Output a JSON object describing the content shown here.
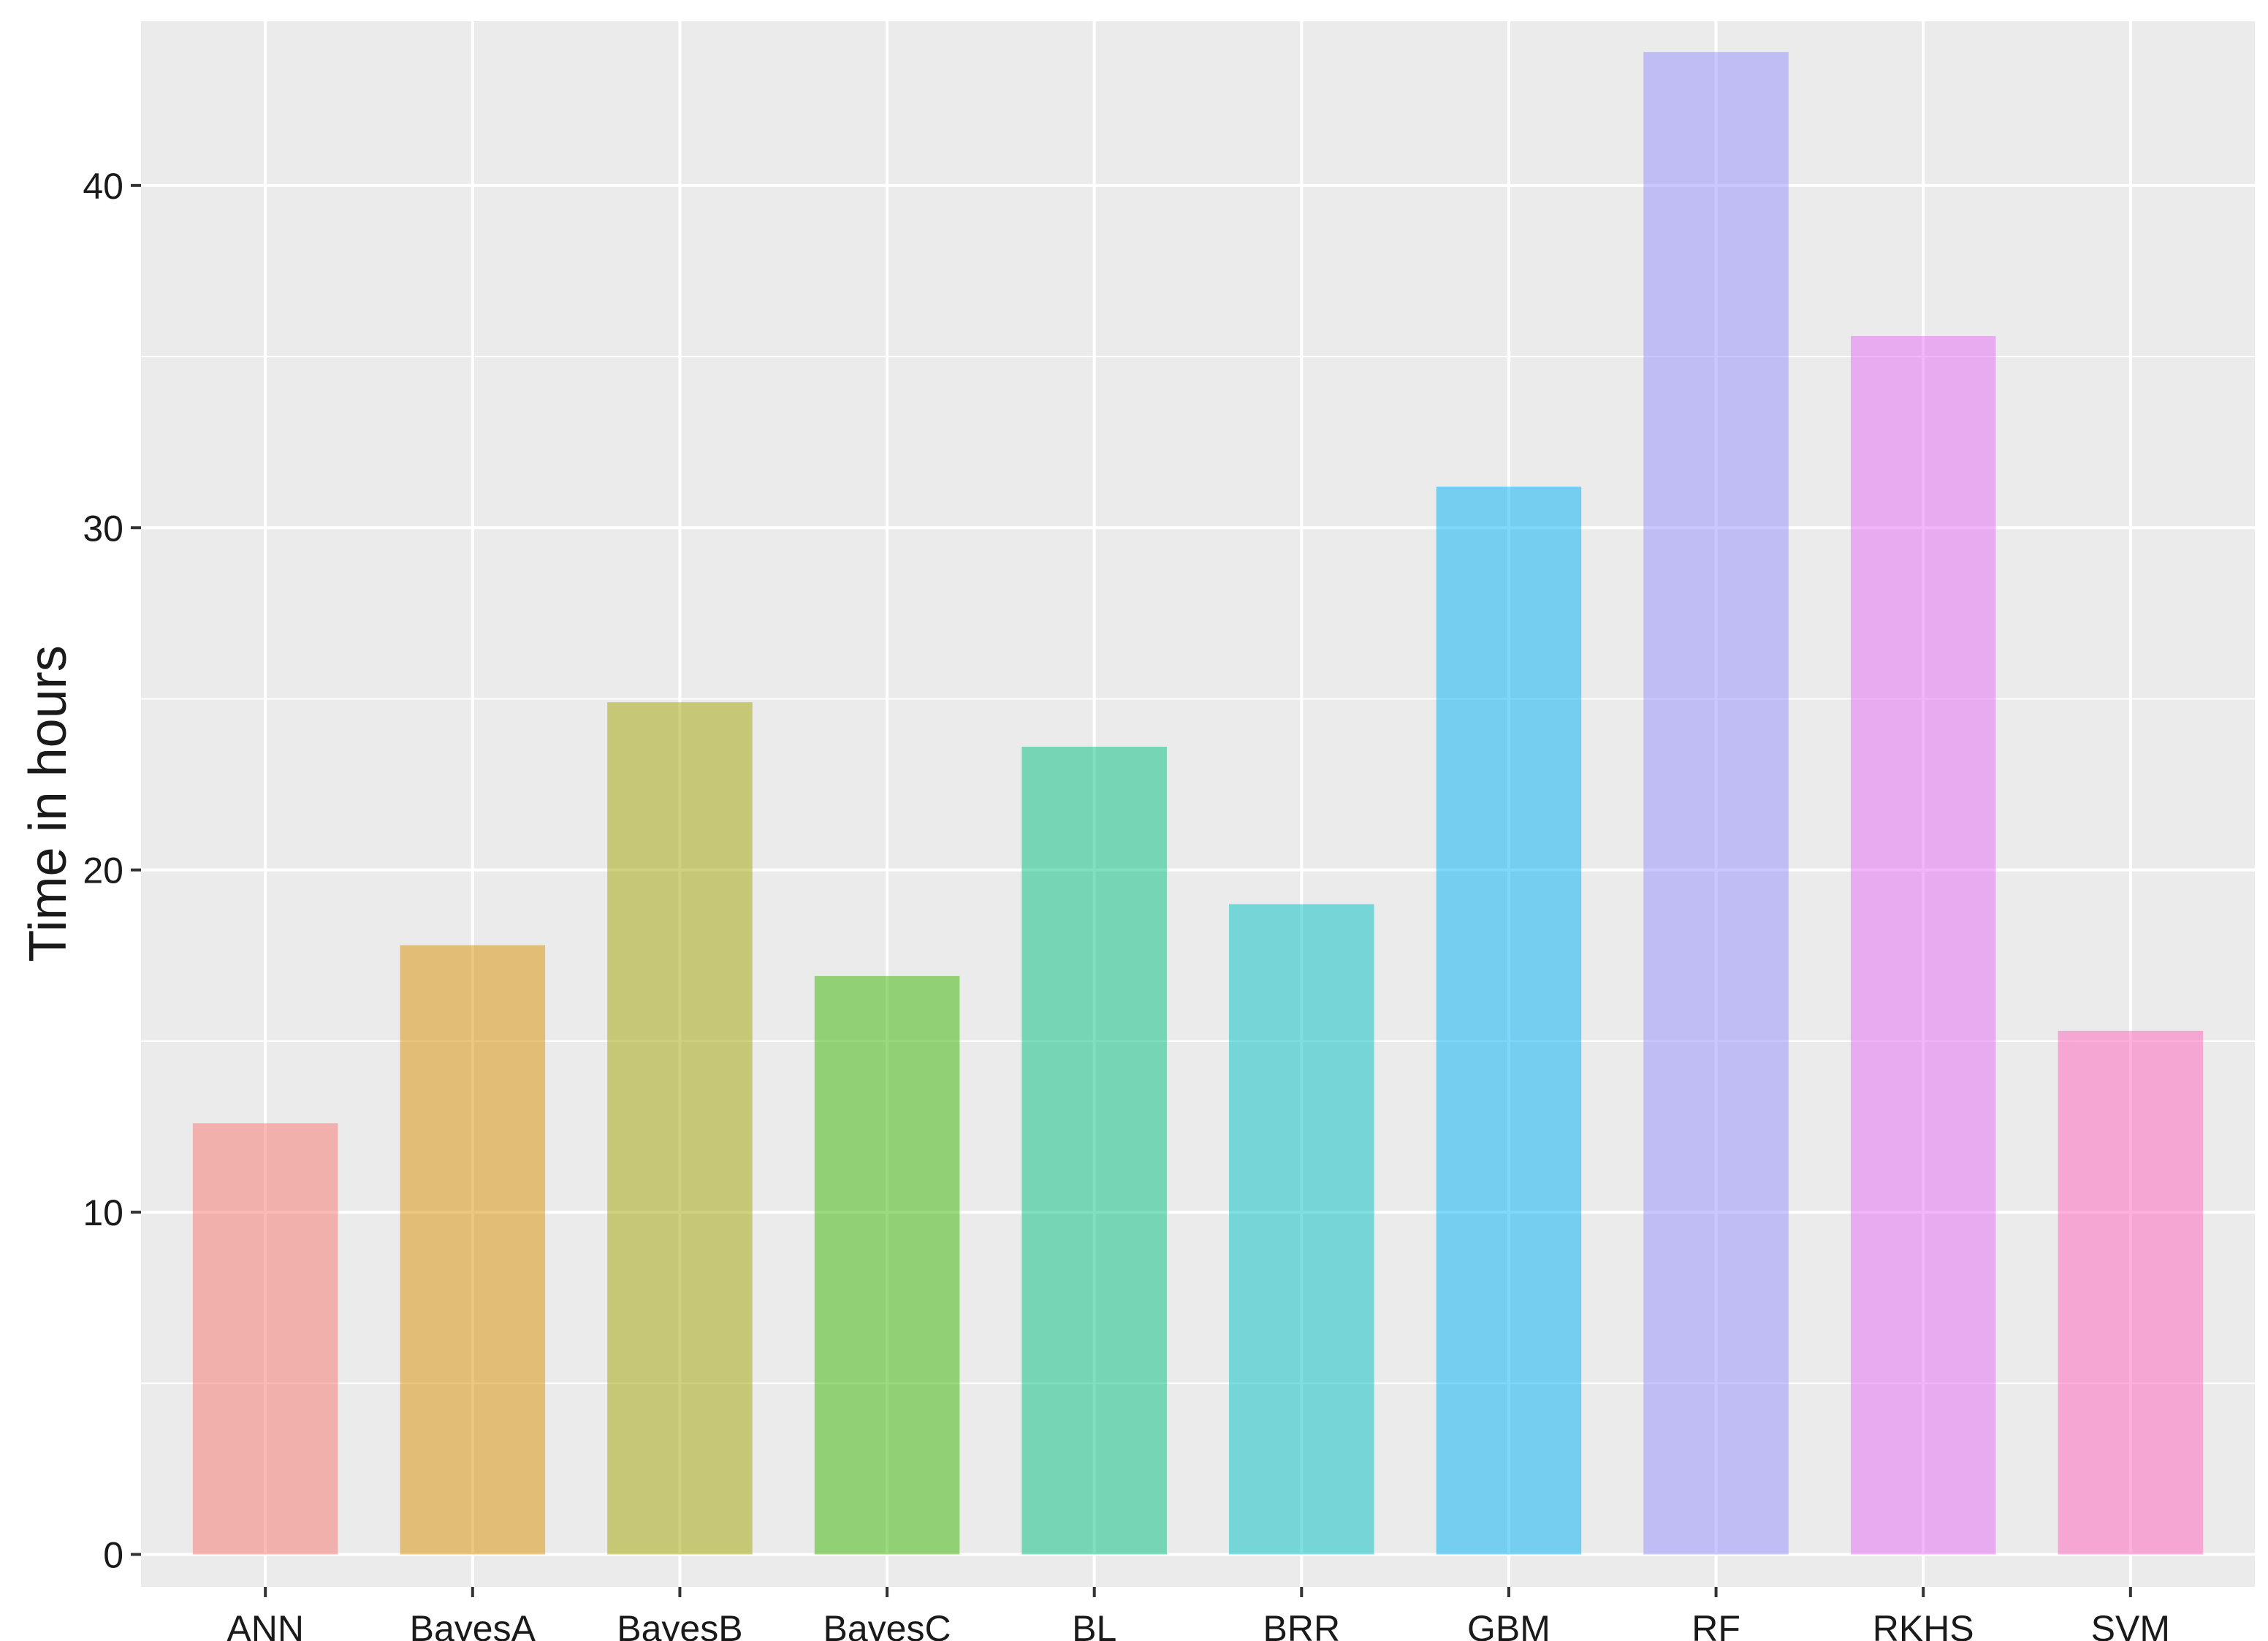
{
  "chart_data": {
    "type": "bar",
    "title": "",
    "xlabel": "",
    "ylabel": "Time in hours",
    "categories": [
      "ANN",
      "BayesA",
      "BayesB",
      "BayesC",
      "BL",
      "BRR",
      "GBM",
      "RF",
      "RKHS",
      "SVM"
    ],
    "values": [
      12.6,
      17.8,
      24.9,
      16.9,
      23.6,
      19.0,
      31.2,
      43.9,
      35.6,
      15.3
    ],
    "colors": [
      "#F8766D",
      "#D89000",
      "#A3A500",
      "#39B600",
      "#00BF7D",
      "#00BFC4",
      "#00B0F6",
      "#9590FF",
      "#E76BF3",
      "#FF62BC"
    ],
    "bar_opacity": 0.5,
    "ylim": [
      -0.95,
      44.8
    ],
    "yticks": [
      0,
      10,
      20,
      30,
      40
    ],
    "grid": true,
    "legend": "none",
    "panel_background": "#EBEBEB",
    "gridline_color": "#FFFFFF"
  }
}
